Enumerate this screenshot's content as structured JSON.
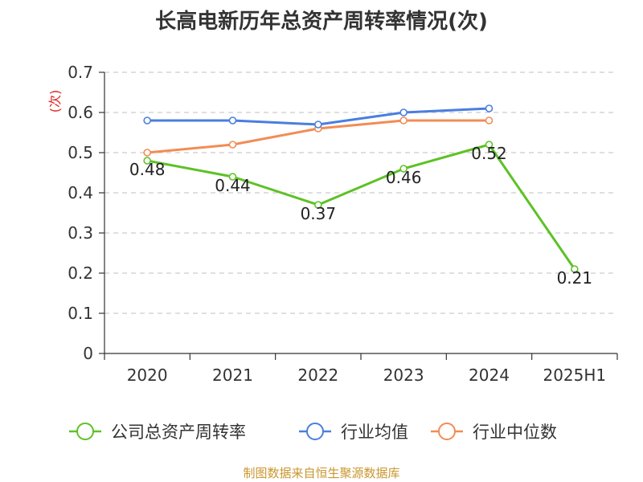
{
  "chart_data": {
    "type": "line",
    "title": "长高电新历年总资产周转率情况(次)",
    "ylabel": "(次)",
    "xlabel": "",
    "categories": [
      "2020",
      "2021",
      "2022",
      "2023",
      "2024",
      "2025H1"
    ],
    "ylim": [
      0,
      0.7
    ],
    "yticks": [
      "0",
      "0.1",
      "0.2",
      "0.3",
      "0.4",
      "0.5",
      "0.6",
      "0.7"
    ],
    "grid": true,
    "legend_position": "bottom",
    "series": [
      {
        "name": "公司总资产周转率",
        "color": "#5dc225",
        "values": [
          0.48,
          0.44,
          0.37,
          0.46,
          0.52,
          0.21
        ],
        "labels": [
          "0.48",
          "0.44",
          "0.37",
          "0.46",
          "0.52",
          "0.21"
        ]
      },
      {
        "name": "行业均值",
        "color": "#4a7ee0",
        "values": [
          0.58,
          0.58,
          0.57,
          0.6,
          0.61,
          null
        ]
      },
      {
        "name": "行业中位数",
        "color": "#f28c55",
        "values": [
          0.5,
          0.52,
          0.56,
          0.58,
          0.58,
          null
        ]
      }
    ]
  },
  "source": "制图数据来自恒生聚源数据库"
}
